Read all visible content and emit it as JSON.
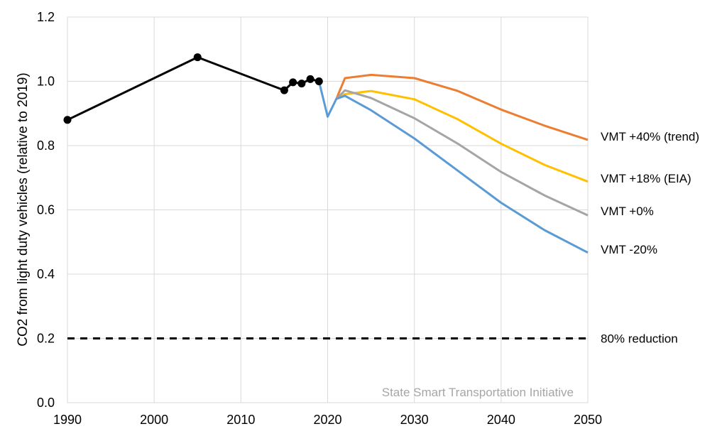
{
  "chart_data": {
    "type": "line",
    "title": "",
    "ylabel": "CO2 from light duty vehicles (relative to 2019)",
    "xlabel": "",
    "xlim": [
      1990,
      2050
    ],
    "ylim": [
      0,
      1.2
    ],
    "x_ticks": [
      1990,
      2000,
      2010,
      2020,
      2030,
      2040,
      2050
    ],
    "x_tick_labels": [
      "1990",
      "2000",
      "2010",
      "2020",
      "2030",
      "2040",
      "2050"
    ],
    "y_ticks": [
      0,
      0.2,
      0.4,
      0.6,
      0.8,
      1.0,
      1.2
    ],
    "y_tick_labels": [
      "0.0",
      "0.2",
      "0.4",
      "0.6",
      "0.8",
      "1.0",
      "1.2"
    ],
    "grid": "vertical and horizontal",
    "source_note": "State Smart Transportation Initiative",
    "historical": {
      "color": "#000000",
      "marker": "circle",
      "points": [
        [
          1990,
          0.88
        ],
        [
          2005,
          1.075
        ],
        [
          2015,
          0.972
        ],
        [
          2016,
          0.997
        ],
        [
          2017,
          0.993
        ],
        [
          2018,
          1.007
        ],
        [
          2019,
          1.0
        ]
      ]
    },
    "series": [
      {
        "name": "VMT +40% (trend)",
        "color": "#ed7d31",
        "x": [
          2021,
          2022,
          2025,
          2030,
          2035,
          2040,
          2045,
          2050
        ],
        "y": [
          0.945,
          1.01,
          1.02,
          1.01,
          0.97,
          0.912,
          0.862,
          0.818
        ]
      },
      {
        "name": "VMT +18% (EIA)",
        "color": "#ffc000",
        "x": [
          2021,
          2022,
          2025,
          2030,
          2035,
          2040,
          2045,
          2050
        ],
        "y": [
          0.945,
          0.96,
          0.97,
          0.944,
          0.882,
          0.806,
          0.74,
          0.688
        ]
      },
      {
        "name": "VMT +0%",
        "color": "#a5a5a5",
        "x": [
          2021,
          2022,
          2025,
          2030,
          2035,
          2040,
          2045,
          2050
        ],
        "y": [
          0.945,
          0.972,
          0.948,
          0.885,
          0.806,
          0.718,
          0.645,
          0.583
        ]
      },
      {
        "name": "VMT -20%",
        "color": "#5b9bd5",
        "x": [
          2019,
          2020,
          2021,
          2022,
          2025,
          2030,
          2035,
          2040,
          2045,
          2050
        ],
        "y": [
          1.0,
          0.89,
          0.945,
          0.955,
          0.91,
          0.822,
          0.722,
          0.622,
          0.537,
          0.467
        ]
      }
    ],
    "reference_line": {
      "label": "80% reduction",
      "y": 0.2,
      "color": "#000000",
      "style": "dashed"
    }
  }
}
